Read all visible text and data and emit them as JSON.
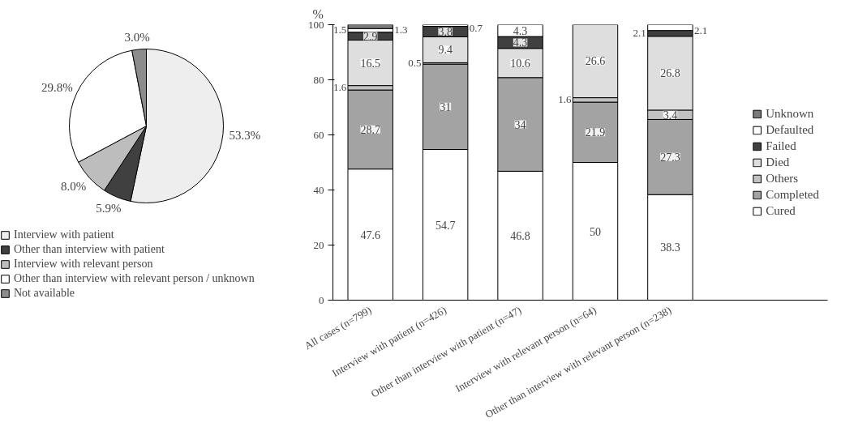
{
  "chart_data": [
    {
      "type": "pie",
      "categories": [
        "Interview with patient",
        "Other than interview with patient",
        "Interview with relevant person",
        "Other than interview with relevant person / unknown",
        "Not available"
      ],
      "values": [
        53.3,
        5.9,
        8.0,
        29.8,
        3.0
      ],
      "value_labels": [
        "53.3%",
        "5.9%",
        "8.0%",
        "29.8%",
        "3.0%"
      ],
      "colors": [
        "#eeeeee",
        "#404040",
        "#bdbdbd",
        "#ffffff",
        "#8c8c8c"
      ],
      "legend": "bottom"
    },
    {
      "type": "bar",
      "stacked": true,
      "ylabel": "%",
      "categories": [
        "All cases (n=799)",
        "Interview with patient (n=426)",
        "Other than interview with patient (n=47)",
        "Interview with relevant person (n=64)",
        "Other than interview with relevant person (n=238)"
      ],
      "series": [
        {
          "name": "Cured",
          "color": "#ffffff",
          "values": [
            47.6,
            54.7,
            46.8,
            50,
            38.3
          ]
        },
        {
          "name": "Completed",
          "color": "#a3a3a3",
          "values": [
            28.7,
            31,
            34,
            21.9,
            27.3
          ]
        },
        {
          "name": "Others",
          "color": "#c2c2c2",
          "values": [
            1.6,
            0.5,
            null,
            1.6,
            3.4
          ]
        },
        {
          "name": "Died",
          "color": "#dedede",
          "values": [
            16.5,
            9.4,
            10.6,
            26.6,
            26.8
          ]
        },
        {
          "name": "Failed",
          "color": "#404040",
          "values": [
            2.9,
            3.8,
            4.3,
            null,
            2.1
          ]
        },
        {
          "name": "Defaulted",
          "color": "#ffffff",
          "values": [
            1.3,
            0.7,
            4.3,
            null,
            2.1
          ]
        },
        {
          "name": "Unknown",
          "color": "#7a7a7a",
          "values": [
            1.5,
            null,
            null,
            null,
            null
          ]
        }
      ],
      "ylim": [
        0,
        100
      ],
      "yticks": [
        0,
        20,
        40,
        60,
        80,
        100
      ],
      "data_labels": true,
      "legend": "right"
    }
  ]
}
